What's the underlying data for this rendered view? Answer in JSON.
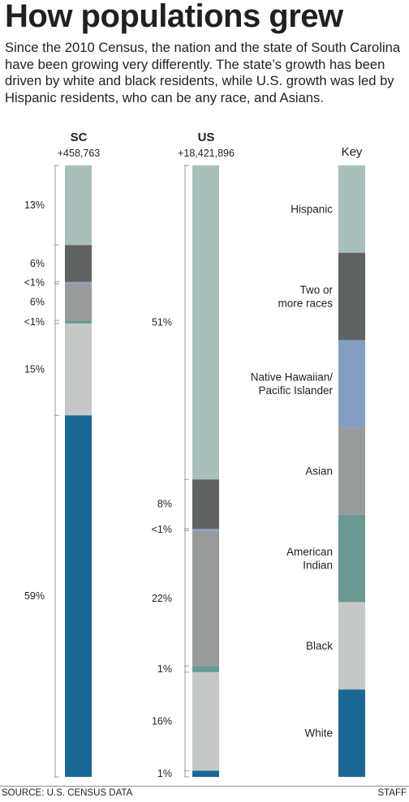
{
  "headline": "How populations grew",
  "intro": "Since the 2010 Census, the nation and the state of South Carolina have been growing very differently. The state’s growth has been driven by white and black residents, while U.S. growth was led by Hispanic residents, who can be any race, and Asians.",
  "colors": {
    "Hispanic": "#a9bfbc",
    "Two or more races": "#5f6263",
    "Native Hawaiian/ Pacific Islander": "#859ec4",
    "Asian": "#979b9b",
    "American Indian": "#6a9893",
    "Black": "#c5c8c9",
    "White": "#1a6795"
  },
  "chart_data": {
    "type": "stacked-bar",
    "categories": [
      "Hispanic",
      "Two or more races",
      "Native Hawaiian/ Pacific Islander",
      "Asian",
      "American Indian",
      "Black",
      "White"
    ],
    "series": [
      {
        "name": "SC",
        "total": "+458,763",
        "values": [
          13,
          6,
          0.3,
          6,
          0.5,
          15,
          59
        ],
        "labels": [
          "13%",
          "6%",
          "<1%",
          "6%",
          "<1%",
          "15%",
          "59%"
        ]
      },
      {
        "name": "US",
        "total": "+18,421,896",
        "values": [
          51,
          8,
          0.3,
          22,
          1,
          16,
          1
        ],
        "labels": [
          "51%",
          "8%",
          "<1%",
          "22%",
          "1%",
          "16%",
          "1%"
        ]
      }
    ],
    "key": {
      "title": "Key",
      "items": [
        "Hispanic",
        "Two or\nmore races",
        "Native Hawaiian/\nPacific Islander",
        "Asian",
        "American\nIndian",
        "Black",
        "White"
      ]
    }
  },
  "footer": {
    "source": "SOURCE: U.S. CENSUS DATA",
    "credit": "STAFF"
  }
}
